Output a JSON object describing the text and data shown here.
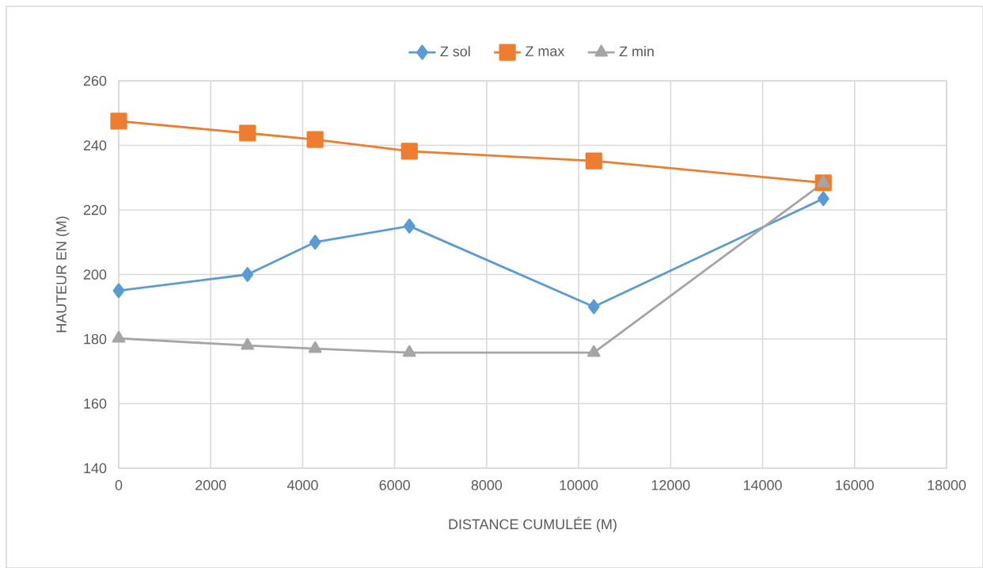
{
  "chart_data": {
    "type": "line",
    "xlabel": "DISTANCE CUMULÉE (M)",
    "ylabel": "HAUTEUR EN (M)",
    "xlim": [
      0,
      18000
    ],
    "ylim": [
      140,
      260
    ],
    "xticks": [
      0,
      2000,
      4000,
      6000,
      8000,
      10000,
      12000,
      14000,
      16000,
      18000
    ],
    "yticks": [
      140,
      160,
      180,
      200,
      220,
      240,
      260
    ],
    "grid": true,
    "legend": "top",
    "line_style": "solid",
    "x": [
      0,
      2800,
      4270,
      6320,
      10330,
      15320
    ],
    "series": [
      {
        "name": "Z sol",
        "color": "#5b9bd5",
        "marker": "diamond",
        "values": [
          195,
          200,
          210,
          215,
          190,
          223.5
        ]
      },
      {
        "name": "Z max",
        "color": "#ed7d31",
        "marker": "square",
        "values": [
          247.5,
          243.8,
          241.8,
          238.2,
          235.2,
          228.4
        ]
      },
      {
        "name": "Z min",
        "color": "#a5a5a5",
        "marker": "triangle",
        "values": [
          180.2,
          178,
          177,
          175.8,
          175.8,
          228.4
        ]
      }
    ]
  }
}
